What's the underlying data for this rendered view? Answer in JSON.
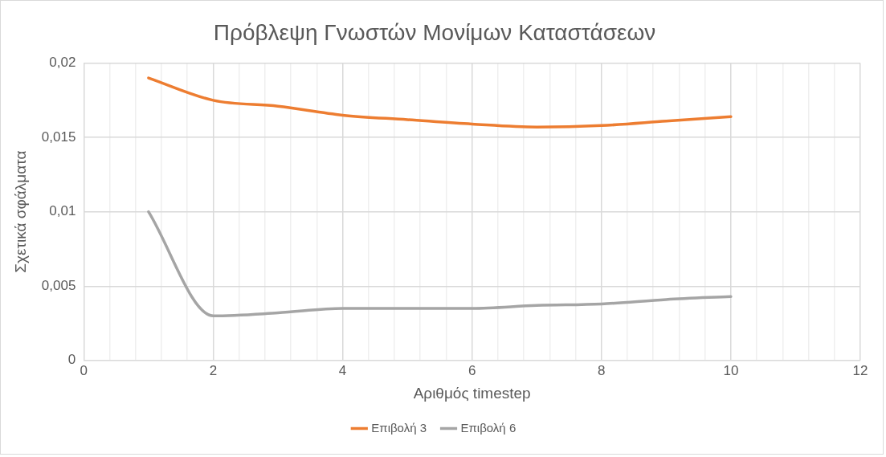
{
  "chart_data": {
    "type": "line",
    "title": "Πρόβλεψη Γνωστών Μονίμων Καταστάσεων",
    "xlabel": "Αριθμός timestep",
    "ylabel": "Σχετικά σφάλματα",
    "x": [
      1,
      2,
      3,
      4,
      5,
      6,
      7,
      8,
      9,
      10
    ],
    "series": [
      {
        "name": "Επιβολή 3",
        "color": "#ed7d31",
        "values": [
          0.019,
          0.0175,
          0.0171,
          0.0165,
          0.0162,
          0.0159,
          0.0157,
          0.0158,
          0.0161,
          0.0164
        ]
      },
      {
        "name": "Επιβολή 6",
        "color": "#a5a5a5",
        "values": [
          0.01,
          0.003,
          0.0032,
          0.0035,
          0.0035,
          0.0035,
          0.0037,
          0.0038,
          0.0041,
          0.0043
        ]
      }
    ],
    "xlim": [
      0,
      12
    ],
    "xticks": [
      0,
      {
        "value": 0.4,
        "label": null
      },
      {
        "value": 0.8,
        "label": null
      },
      {
        "value": 1.2,
        "label": null
      },
      {
        "value": 1.6,
        "label": null
      },
      2,
      {
        "value": 2.4,
        "label": null
      },
      {
        "value": 2.8,
        "label": null
      },
      {
        "value": 3.2,
        "label": null
      },
      {
        "value": 3.6,
        "label": null
      },
      4,
      {
        "value": 4.4,
        "label": null
      },
      {
        "value": 4.8,
        "label": null
      },
      {
        "value": 5.2,
        "label": null
      },
      {
        "value": 5.6,
        "label": null
      },
      6,
      {
        "value": 6.4,
        "label": null
      },
      {
        "value": 6.8,
        "label": null
      },
      {
        "value": 7.2,
        "label": null
      },
      {
        "value": 7.6,
        "label": null
      },
      8,
      {
        "value": 8.4,
        "label": null
      },
      {
        "value": 8.8,
        "label": null
      },
      {
        "value": 9.2,
        "label": null
      },
      {
        "value": 9.6,
        "label": null
      },
      10,
      {
        "value": 10.4,
        "label": null
      },
      {
        "value": 10.8,
        "label": null
      },
      {
        "value": 11.2,
        "label": null
      },
      {
        "value": 11.6,
        "label": null
      },
      12
    ],
    "ylim": [
      0,
      0.02
    ],
    "yticks": [
      0,
      {
        "value": 0.005,
        "label": "0,005"
      },
      {
        "value": 0.01,
        "label": "0,01"
      },
      {
        "value": 0.015,
        "label": "0,015"
      },
      {
        "value": 0.02,
        "label": "0,02"
      }
    ],
    "grid": true,
    "legend": "bottom",
    "marker": "none",
    "line_style": "solid"
  }
}
